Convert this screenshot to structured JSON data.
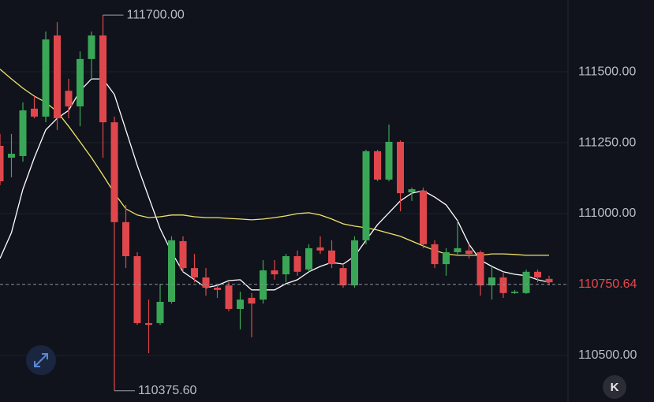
{
  "chart_data": {
    "type": "candlestick",
    "open": [
      111239,
      111197,
      111203,
      111370,
      111342,
      111628,
      111433,
      111378,
      111545,
      111628,
      111322,
      110970,
      110850,
      110614,
      110614,
      110689,
      110903,
      110808,
      110775,
      110739,
      110747,
      110664,
      110703,
      110697,
      110800,
      110786,
      110850,
      110803,
      110881,
      110870,
      110808,
      110747,
      110906,
      111220,
      111120,
      111253,
      111075,
      111081,
      110892,
      110822,
      110864,
      110870,
      110864,
      110747,
      110775,
      110720,
      110720,
      110795,
      110770
    ],
    "high": [
      111281,
      111281,
      111392,
      111414,
      111642,
      111675,
      111475,
      111572,
      111642,
      111700,
      111342,
      111031,
      110864,
      110697,
      110753,
      110920,
      110920,
      110858,
      110808,
      110753,
      110758,
      110725,
      110720,
      110836,
      110836,
      110858,
      110870,
      110892,
      110920,
      110906,
      110822,
      110920,
      111225,
      111225,
      111314,
      111258,
      111092,
      111092,
      110906,
      110878,
      110975,
      110892,
      110870,
      110814,
      110795,
      110731,
      110803,
      110803,
      110781
    ],
    "low": [
      111100,
      111128,
      111183,
      111336,
      111322,
      111295,
      111336,
      111308,
      111475,
      111197,
      110375.6,
      110808,
      110608,
      110508,
      110608,
      110683,
      110795,
      110758,
      110711,
      110703,
      110656,
      110592,
      110564,
      110683,
      110767,
      110758,
      110781,
      110795,
      110858,
      110808,
      110739,
      110739,
      110892,
      111114,
      111114,
      111008,
      111045,
      110878,
      110808,
      110781,
      110850,
      110842,
      110711,
      110697,
      110703,
      110717,
      110717,
      110758,
      110747
    ],
    "close": [
      111114,
      111211,
      111364,
      111342,
      111614,
      111336,
      111378,
      111545,
      111628,
      111322,
      110970,
      110850,
      110614,
      110608,
      110689,
      110906,
      110808,
      110775,
      110739,
      110731,
      110664,
      110697,
      110683,
      110800,
      110786,
      110850,
      110795,
      110878,
      110870,
      110822,
      110747,
      110906,
      111220,
      111120,
      111253,
      111072,
      111086,
      110892,
      110822,
      110864,
      110878,
      110858,
      110747,
      110775,
      110720,
      110725,
      110795,
      110775,
      110758
    ],
    "up_color": "#3aa757",
    "down_color": "#e0474c",
    "overlays": [
      {
        "color": "#ffffff",
        "values": [
          110842,
          110933,
          111086,
          111197,
          111295,
          111336,
          111364,
          111433,
          111475,
          111475,
          111420,
          111295,
          111170,
          111058,
          110947,
          110864,
          110795,
          110767,
          110739,
          110747,
          110764,
          110767,
          110731,
          110731,
          110731,
          110753,
          110767,
          110795,
          110814,
          110828,
          110822,
          110850,
          110906,
          110961,
          111003,
          111045,
          111072,
          111081,
          111058,
          111031,
          110975,
          110892,
          110836,
          110814,
          110795,
          110786,
          110781,
          110767,
          110758
        ]
      },
      {
        "color": "#f0e36a",
        "values": [
          111509,
          111475,
          111442,
          111414,
          111392,
          111359,
          111308,
          111253,
          111197,
          111136,
          111072,
          111017,
          110995,
          110986,
          110989,
          110995,
          110995,
          110989,
          110986,
          110986,
          110983,
          110981,
          110978,
          110981,
          110986,
          110992,
          111000,
          111003,
          110995,
          110981,
          110964,
          110956,
          110950,
          110942,
          110931,
          110920,
          110903,
          110886,
          110870,
          110858,
          110853,
          110853,
          110853,
          110858,
          110858,
          110856,
          110853,
          110853,
          110853
        ]
      }
    ],
    "ylim": [
      110336,
      111753
    ],
    "yticks": [
      {
        "value": 110500,
        "label": "110500.00"
      },
      {
        "value": 111000,
        "label": "111000.00"
      },
      {
        "value": 111250,
        "label": "111250.00"
      },
      {
        "value": 111500,
        "label": "111500.00"
      }
    ],
    "grid": true,
    "max_label": {
      "value": 111700,
      "label": "111700.00"
    },
    "min_label": {
      "value": 110375.6,
      "label": "110375.60"
    },
    "last_price": 110750.64,
    "last_price_color": "#e5484d"
  },
  "ui": {
    "button_label": "K"
  }
}
